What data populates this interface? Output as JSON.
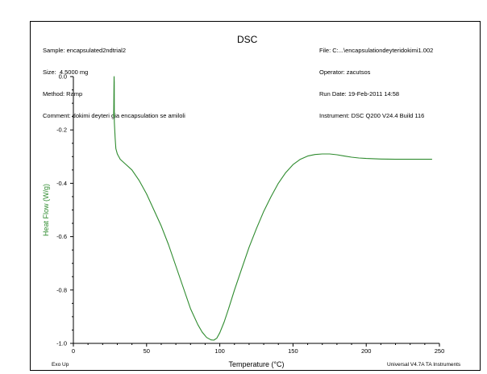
{
  "header": {
    "sample": "Sample: encapsulated2ndtrial2",
    "size": "Size:  4.5000 mg",
    "method": "Method: Ramp",
    "comment": "Comment: dokimi deyteri gia encapsulation se amiloli",
    "file": "File: C:...\\encapsulationdeyteridokimi1.002",
    "operator": "Operator: zacutsos",
    "run_date": "Run Date: 19-Feb-2011 14:58",
    "instrument": "Instrument: DSC Q200 V24.4 Build 116"
  },
  "footer": {
    "left": "Exo Up",
    "right": "Universal V4.7A TA Instruments"
  },
  "colors": {
    "curve": "#2e8b2e",
    "ylabel": "#2e8b2e",
    "axis": "#000000"
  },
  "chart_data": {
    "type": "line",
    "title": "DSC",
    "xlabel": "Temperature (°C)",
    "ylabel": "Heat Flow (W/g)",
    "xlim": [
      0,
      250
    ],
    "ylim": [
      -1.0,
      0.0
    ],
    "x_ticks": [
      0,
      50,
      100,
      150,
      200,
      250
    ],
    "x_tick_labels": [
      "0",
      "50",
      "100",
      "150",
      "200",
      "250"
    ],
    "y_ticks": [
      -1.0,
      -0.8,
      -0.6,
      -0.4,
      -0.2,
      0.0
    ],
    "y_tick_labels": [
      "-1.0",
      "-0.8",
      "-0.6",
      "-0.4",
      "-0.2",
      "0.0"
    ],
    "grid": false,
    "series": [
      {
        "x": [
          27.5,
          27.6,
          27.7,
          27.8,
          27.9,
          28.0,
          28.5,
          29,
          30,
          32,
          35,
          40,
          45,
          50,
          55,
          60,
          65,
          70,
          75,
          80,
          85,
          88,
          91,
          94,
          96,
          98,
          100,
          103,
          106,
          110,
          115,
          120,
          125,
          130,
          135,
          140,
          145,
          150,
          155,
          160,
          165,
          170,
          175,
          180,
          185,
          190,
          195,
          200,
          210,
          220,
          230,
          245
        ],
        "y": [
          -0.15,
          -0.12,
          -0.05,
          0.0,
          -0.02,
          -0.17,
          -0.23,
          -0.27,
          -0.29,
          -0.31,
          -0.325,
          -0.35,
          -0.39,
          -0.44,
          -0.5,
          -0.56,
          -0.63,
          -0.71,
          -0.79,
          -0.87,
          -0.93,
          -0.958,
          -0.978,
          -0.987,
          -0.988,
          -0.98,
          -0.96,
          -0.92,
          -0.87,
          -0.8,
          -0.72,
          -0.64,
          -0.57,
          -0.505,
          -0.45,
          -0.4,
          -0.36,
          -0.33,
          -0.31,
          -0.298,
          -0.292,
          -0.29,
          -0.29,
          -0.293,
          -0.298,
          -0.302,
          -0.305,
          -0.307,
          -0.309,
          -0.31,
          -0.31,
          -0.31
        ]
      }
    ]
  }
}
